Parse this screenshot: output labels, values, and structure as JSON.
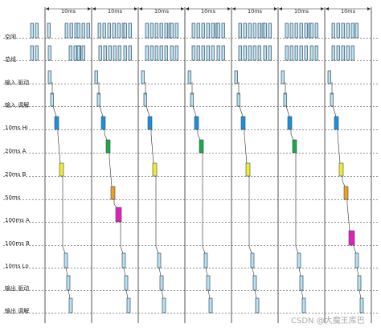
{
  "rows": [
    {
      "id": "row-1",
      "label": "空闲"
    },
    {
      "id": "row-2",
      "label": "总线"
    },
    {
      "id": "row-3",
      "label": "输入 驱动"
    },
    {
      "id": "row-4",
      "label": "输入 调解"
    },
    {
      "id": "row-5",
      "label": "10ms Hi"
    },
    {
      "id": "row-6",
      "label": "20ms A"
    },
    {
      "id": "row-7",
      "label": "20ms B"
    },
    {
      "id": "row-8",
      "label": "50ms"
    },
    {
      "id": "row-9",
      "label": "100ms A"
    },
    {
      "id": "row-10",
      "label": "100ms B"
    },
    {
      "id": "row-11",
      "label": "10ms Lo"
    },
    {
      "id": "row-12",
      "label": "输出 驱动"
    },
    {
      "id": "row-13",
      "label": "输出 调解"
    }
  ],
  "periods": [
    "10ms",
    "10ms",
    "10ms",
    "10ms",
    "10ms",
    "10ms",
    "10ms"
  ],
  "watermark": "CSDN @大魔王库巴",
  "colors": {
    "line": "#2b2b2b",
    "pulse_fill": "#bfe0ee",
    "pulse_stroke": "#2d4f66",
    "task_10hi": "#1f8fd6",
    "task_20a": "#1ea84a",
    "task_20b": "#f2ea2a",
    "task_50": "#f0a11c",
    "task_100": "#e020b8"
  }
}
